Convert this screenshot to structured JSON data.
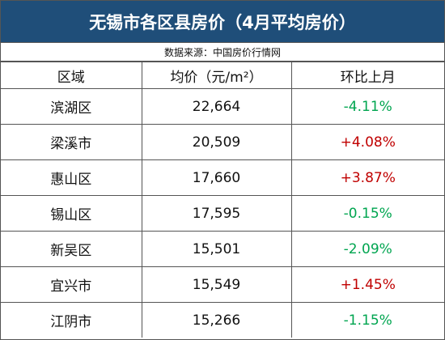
{
  "header": {
    "title": "无锡市各区县房价（4月平均房价）",
    "source": "数据来源：中国房价行情网"
  },
  "table": {
    "columns": [
      "区域",
      "均价（元/m²）",
      "环比上月"
    ],
    "rows": [
      [
        "滨湖区",
        "22,664",
        "-4.11%"
      ],
      [
        "梁溪市",
        "20,509",
        "+4.08%"
      ],
      [
        "惠山区",
        "17,660",
        "+3.87%"
      ],
      [
        "锡山区",
        "17,595",
        "-0.15%"
      ],
      [
        "新吴区",
        "15,501",
        "-2.09%"
      ],
      [
        "宜兴市",
        "15,549",
        "+1.45%"
      ],
      [
        "江阴市",
        "15,266",
        "-1.15%"
      ]
    ],
    "up_color": "#c00000",
    "down_color": "#00a550"
  }
}
